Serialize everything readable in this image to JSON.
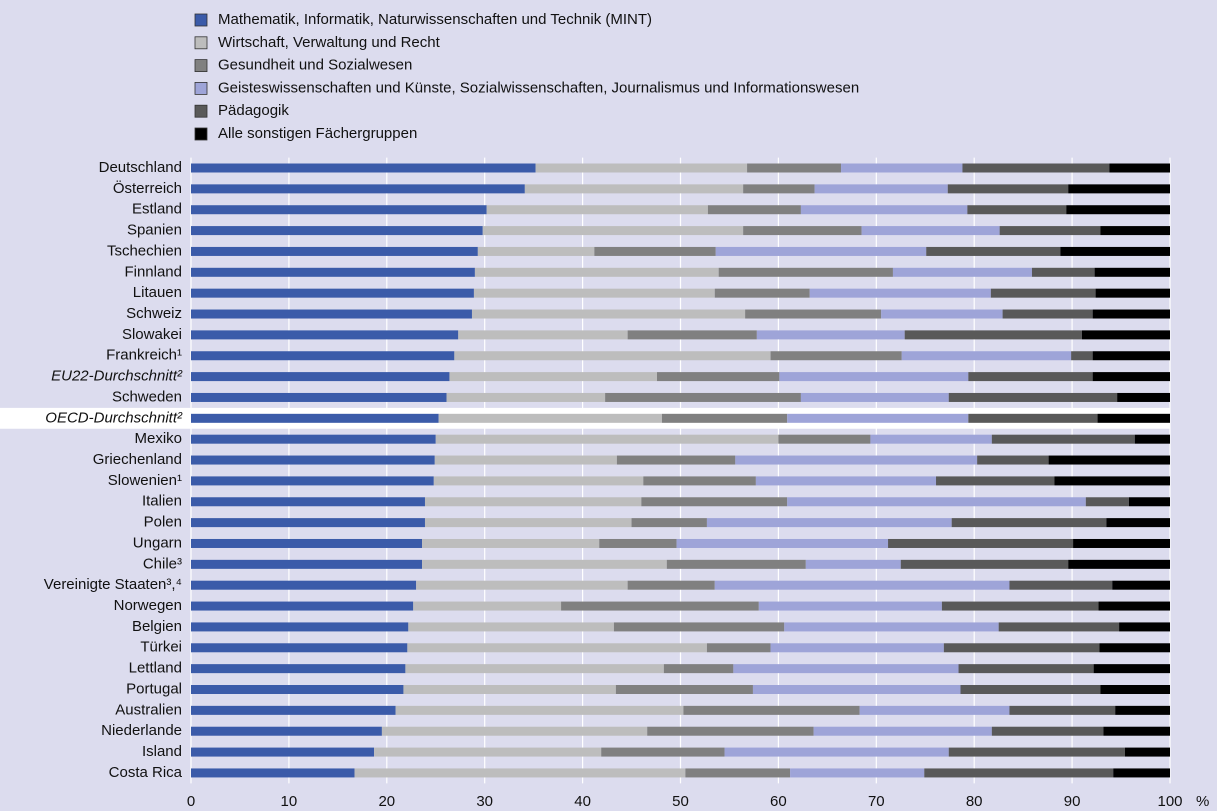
{
  "chart_data": {
    "type": "stacked-bar-horizontal",
    "categories": [
      "Deutschland",
      "Österreich",
      "Estland",
      "Spanien",
      "Tschechien",
      "Finnland",
      "Litauen",
      "Schweiz",
      "Slowakei",
      "Frankreich¹",
      "EU22-Durchschnitt²",
      "Schweden",
      "OECD-Durchschnitt²",
      "Mexiko",
      "Griechenland",
      "Slowenien¹",
      "Italien",
      "Polen",
      "Ungarn",
      "Chile³",
      "Vereinigte Staaten³,⁴",
      "Norwegen",
      "Belgien",
      "Türkei",
      "Lettland",
      "Portugal",
      "Australien",
      "Niederlande",
      "Island",
      "Costa Rica"
    ],
    "series": [
      {
        "name": "Mathematik, Informatik, Naturwissenschaften und Technik (MINT)",
        "color": "#3b5ba9",
        "values": [
          35.2,
          34.1,
          30.2,
          29.8,
          29.3,
          29.0,
          28.9,
          28.7,
          27.3,
          26.9,
          26.4,
          26.1,
          25.3,
          25.0,
          24.9,
          24.8,
          23.9,
          23.9,
          23.6,
          23.6,
          23.0,
          22.7,
          22.2,
          22.1,
          21.9,
          21.7,
          20.9,
          19.5,
          18.7,
          16.7
        ]
      },
      {
        "name": "Wirtschaft, Verwaltung und Recht",
        "color": "#bdbdbd",
        "values": [
          21.6,
          22.3,
          22.6,
          26.6,
          11.9,
          24.9,
          24.6,
          27.9,
          17.3,
          32.3,
          21.2,
          16.2,
          22.8,
          35.0,
          18.6,
          21.4,
          22.1,
          21.1,
          18.1,
          25.0,
          21.6,
          15.1,
          21.0,
          30.6,
          26.4,
          21.7,
          29.4,
          27.1,
          23.2,
          33.8
        ]
      },
      {
        "name": "Gesundheit und Sozialwesen",
        "color": "#808080",
        "values": [
          9.6,
          7.3,
          9.5,
          12.1,
          12.4,
          17.8,
          9.7,
          13.9,
          13.2,
          13.4,
          12.5,
          20.0,
          12.8,
          9.4,
          12.1,
          11.5,
          14.9,
          7.7,
          7.9,
          14.2,
          8.9,
          20.2,
          17.4,
          6.5,
          7.1,
          14.0,
          18.0,
          17.0,
          12.6,
          10.7
        ]
      },
      {
        "name": "Geisteswissenschaften und Künste, Sozialwissenschaften, Journalismus und Informationswesen",
        "color": "#9ea4d8",
        "values": [
          12.4,
          13.6,
          17.0,
          14.1,
          21.5,
          14.2,
          18.5,
          12.4,
          15.1,
          17.3,
          19.3,
          15.1,
          18.5,
          12.4,
          24.7,
          18.4,
          30.5,
          25.0,
          21.6,
          9.7,
          30.1,
          18.7,
          21.9,
          17.7,
          23.0,
          21.2,
          15.3,
          18.2,
          22.9,
          13.7
        ]
      },
      {
        "name": "Pädagogik",
        "color": "#595959",
        "values": [
          15.0,
          12.3,
          10.1,
          10.3,
          13.7,
          6.4,
          10.7,
          9.2,
          18.1,
          2.2,
          12.7,
          17.2,
          13.2,
          14.6,
          7.3,
          12.1,
          4.4,
          15.8,
          18.9,
          17.1,
          10.5,
          16.0,
          12.3,
          15.9,
          13.8,
          14.3,
          10.8,
          11.4,
          18.0,
          19.3
        ]
      },
      {
        "name": "Alle sonstigen Fächergruppen",
        "color": "#000000",
        "values": [
          6.2,
          10.4,
          10.6,
          7.1,
          11.2,
          7.7,
          7.6,
          7.9,
          9.0,
          7.9,
          7.9,
          5.4,
          7.4,
          3.6,
          12.4,
          11.8,
          4.2,
          6.5,
          9.9,
          10.4,
          5.9,
          7.3,
          5.2,
          7.2,
          7.8,
          7.1,
          5.6,
          6.8,
          4.6,
          5.8
        ]
      }
    ],
    "xlim": [
      0,
      100
    ],
    "xticks": [
      0,
      10,
      20,
      30,
      40,
      50,
      60,
      70,
      80,
      90,
      100
    ],
    "xlabel": "%",
    "grid": true,
    "highlight_index": 12,
    "italic_indices": [
      10,
      12
    ]
  }
}
